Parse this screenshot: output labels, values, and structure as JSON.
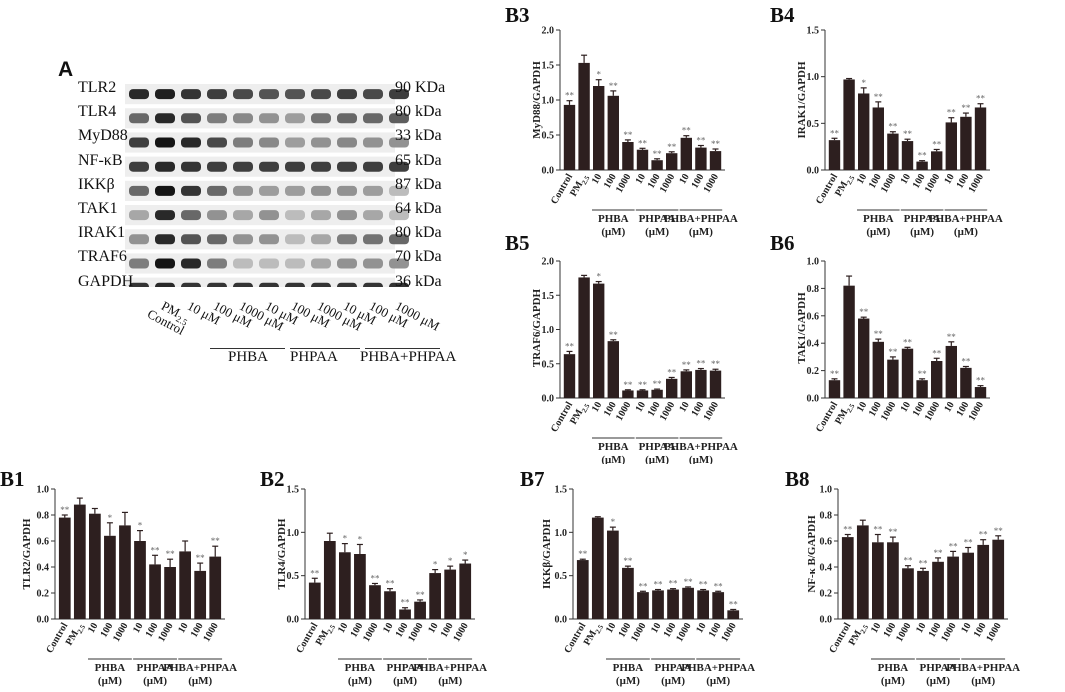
{
  "figure": {
    "panel_a_label": "A",
    "blot": {
      "proteins": [
        "TLR2",
        "TLR4",
        "MyD88",
        "NF-κB",
        "IKKβ",
        "TAK1",
        "IRAK1",
        "TRAF6",
        "GAPDH"
      ],
      "sizes": [
        "90 KDa",
        "80 kDa",
        "33 kDa",
        "65 kDa",
        "87 kDa",
        "64 kDa",
        "80 kDa",
        "70 kDa",
        "36 kDa"
      ],
      "lanes": [
        "Control",
        "PM",
        "10 μM",
        "100 μM",
        "1000 μM",
        "10 μM",
        "100 μM",
        "1000 μM",
        "10 μM",
        "100 μM",
        "1000 μM"
      ],
      "pm_subscript": "2.5",
      "groups": [
        "PHBA",
        "PHPAA",
        "PHBA+PHPAA"
      ]
    }
  },
  "chart_data": [
    {
      "id": "B3",
      "type": "bar",
      "title": "B3",
      "ylabel": "MyD88/GAPDH",
      "ylim": [
        0,
        2.0
      ],
      "yticks": [
        "0.0",
        "0.5",
        "1.0",
        "1.5",
        "2.0"
      ],
      "categories": [
        "Control",
        "PM",
        "10",
        "100",
        "1000",
        "10",
        "100",
        "1000",
        "10",
        "100",
        "1000"
      ],
      "values": [
        0.93,
        1.53,
        1.2,
        1.06,
        0.4,
        0.29,
        0.14,
        0.24,
        0.46,
        0.32,
        0.27
      ],
      "errors": [
        0.06,
        0.11,
        0.09,
        0.07,
        0.03,
        0.02,
        0.02,
        0.02,
        0.03,
        0.03,
        0.03
      ],
      "sig": [
        "**",
        "",
        "*",
        "**",
        "**",
        "**",
        "**",
        "**",
        "**",
        "**",
        "**"
      ],
      "groups": [
        {
          "name": "PHBA",
          "unit": "(μM)"
        },
        {
          "name": "PHPAA",
          "unit": "(μM)"
        },
        {
          "name": "PHBA+PHPAA",
          "unit": "(μM)"
        }
      ]
    },
    {
      "id": "B4",
      "type": "bar",
      "title": "B4",
      "ylabel": "IRAK1/GAPDH",
      "ylim": [
        0,
        1.5
      ],
      "yticks": [
        "0.0",
        "0.5",
        "1.0",
        "1.5"
      ],
      "categories": [
        "Control",
        "PM",
        "10",
        "100",
        "1000",
        "10",
        "100",
        "1000",
        "10",
        "100",
        "1000"
      ],
      "values": [
        0.32,
        0.97,
        0.82,
        0.67,
        0.39,
        0.31,
        0.09,
        0.2,
        0.51,
        0.57,
        0.67
      ],
      "errors": [
        0.02,
        0.01,
        0.06,
        0.06,
        0.02,
        0.02,
        0.01,
        0.02,
        0.05,
        0.04,
        0.04
      ],
      "sig": [
        "**",
        "",
        "*",
        "**",
        "**",
        "**",
        "**",
        "**",
        "**",
        "**",
        "**"
      ],
      "groups": [
        {
          "name": "PHBA",
          "unit": "(μM)"
        },
        {
          "name": "PHPAA",
          "unit": "(μM)"
        },
        {
          "name": "PHBA+PHPAA",
          "unit": "(μM)"
        }
      ]
    },
    {
      "id": "B5",
      "type": "bar",
      "title": "B5",
      "ylabel": "TRAF6/GAPDH",
      "ylim": [
        0,
        2.0
      ],
      "yticks": [
        "0.0",
        "0.5",
        "1.0",
        "1.5",
        "2.0"
      ],
      "categories": [
        "Control",
        "PM",
        "10",
        "100",
        "1000",
        "10",
        "100",
        "1000",
        "10",
        "100",
        "1000"
      ],
      "values": [
        0.64,
        1.76,
        1.67,
        0.83,
        0.11,
        0.11,
        0.12,
        0.28,
        0.39,
        0.41,
        0.4
      ],
      "errors": [
        0.04,
        0.03,
        0.03,
        0.02,
        0.01,
        0.01,
        0.01,
        0.02,
        0.02,
        0.02,
        0.02
      ],
      "sig": [
        "**",
        "",
        "*",
        "**",
        "**",
        "**",
        "**",
        "**",
        "**",
        "**",
        "**"
      ],
      "groups": [
        {
          "name": "PHBA",
          "unit": "(μM)"
        },
        {
          "name": "PHPAA",
          "unit": "(μM)"
        },
        {
          "name": "PHBA+PHPAA",
          "unit": "(μM)"
        }
      ]
    },
    {
      "id": "B6",
      "type": "bar",
      "title": "B6",
      "ylabel": "TAK1/GAPDH",
      "ylim": [
        0,
        1.0
      ],
      "yticks": [
        "0.0",
        "0.2",
        "0.4",
        "0.6",
        "0.8",
        "1.0"
      ],
      "categories": [
        "Control",
        "PM",
        "10",
        "100",
        "1000",
        "10",
        "100",
        "1000",
        "10",
        "100",
        "1000"
      ],
      "values": [
        0.13,
        0.82,
        0.58,
        0.41,
        0.28,
        0.36,
        0.13,
        0.27,
        0.38,
        0.22,
        0.08
      ],
      "errors": [
        0.01,
        0.07,
        0.01,
        0.02,
        0.02,
        0.01,
        0.01,
        0.02,
        0.03,
        0.01,
        0.01
      ],
      "sig": [
        "**",
        "",
        "**",
        "**",
        "**",
        "**",
        "**",
        "**",
        "**",
        "**",
        "**"
      ],
      "groups": []
    },
    {
      "id": "B1",
      "type": "bar",
      "title": "B1",
      "ylabel": "TLR2/GAPDH",
      "ylim": [
        0,
        1.0
      ],
      "yticks": [
        "0.0",
        "0.2",
        "0.4",
        "0.6",
        "0.8",
        "1.0"
      ],
      "categories": [
        "Control",
        "PM",
        "10",
        "100",
        "1000",
        "10",
        "100",
        "1000",
        "10",
        "100",
        "1000"
      ],
      "values": [
        0.78,
        0.88,
        0.81,
        0.64,
        0.72,
        0.6,
        0.42,
        0.4,
        0.52,
        0.37,
        0.48
      ],
      "errors": [
        0.02,
        0.05,
        0.04,
        0.1,
        0.1,
        0.08,
        0.07,
        0.06,
        0.08,
        0.06,
        0.08
      ],
      "sig": [
        "**",
        "",
        "",
        "*",
        "",
        "*",
        "**",
        "**",
        "",
        "**",
        "**"
      ],
      "groups": [
        {
          "name": "PHBA",
          "unit": "(μM)"
        },
        {
          "name": "PHPAA",
          "unit": "(μM)"
        },
        {
          "name": "PHBA+PHPAA",
          "unit": "(μM)"
        }
      ]
    },
    {
      "id": "B2",
      "type": "bar",
      "title": "B2",
      "ylabel": "TLR4/GAPDH",
      "ylim": [
        0,
        1.5
      ],
      "yticks": [
        "0.0",
        "0.5",
        "1.0",
        "1.5"
      ],
      "categories": [
        "Control",
        "PM",
        "10",
        "100",
        "1000",
        "10",
        "100",
        "1000",
        "10",
        "100",
        "1000"
      ],
      "values": [
        0.42,
        0.9,
        0.77,
        0.75,
        0.39,
        0.32,
        0.11,
        0.2,
        0.53,
        0.57,
        0.64
      ],
      "errors": [
        0.05,
        0.09,
        0.1,
        0.11,
        0.02,
        0.03,
        0.02,
        0.02,
        0.04,
        0.04,
        0.04
      ],
      "sig": [
        "**",
        "",
        "*",
        "*",
        "**",
        "**",
        "**",
        "**",
        "*",
        "*",
        "*"
      ],
      "groups": [
        {
          "name": "PHBA",
          "unit": "(μM)"
        },
        {
          "name": "PHPAA",
          "unit": "(μM)"
        },
        {
          "name": "PHBA+PHPAA",
          "unit": "(μM)"
        }
      ]
    },
    {
      "id": "B7",
      "type": "bar",
      "title": "B7",
      "ylabel": "IKKβ/GAPDH",
      "ylim": [
        0,
        1.5
      ],
      "yticks": [
        "0.0",
        "0.5",
        "1.0",
        "1.5"
      ],
      "categories": [
        "Control",
        "PM",
        "10",
        "100",
        "1000",
        "10",
        "100",
        "1000",
        "10",
        "100",
        "1000"
      ],
      "values": [
        0.68,
        1.17,
        1.02,
        0.59,
        0.31,
        0.33,
        0.34,
        0.36,
        0.33,
        0.31,
        0.1
      ],
      "errors": [
        0.01,
        0.01,
        0.04,
        0.02,
        0.01,
        0.01,
        0.01,
        0.01,
        0.01,
        0.01,
        0.01
      ],
      "sig": [
        "**",
        "",
        "*",
        "**",
        "**",
        "**",
        "**",
        "**",
        "**",
        "**",
        "**"
      ],
      "groups": [
        {
          "name": "PHBA",
          "unit": "(μM)"
        },
        {
          "name": "PHPAA",
          "unit": "(μM)"
        },
        {
          "name": "PHBA+PHPAA",
          "unit": "(μM)"
        }
      ]
    },
    {
      "id": "B8",
      "type": "bar",
      "title": "B8",
      "ylabel": "NF-κ B/GAPDH",
      "ylim": [
        0,
        1.0
      ],
      "yticks": [
        "0.0",
        "0.2",
        "0.4",
        "0.6",
        "0.8",
        "1.0"
      ],
      "categories": [
        "Control",
        "PM",
        "10",
        "100",
        "1000",
        "10",
        "100",
        "1000",
        "10",
        "100",
        "1000"
      ],
      "values": [
        0.63,
        0.72,
        0.59,
        0.59,
        0.39,
        0.37,
        0.44,
        0.48,
        0.51,
        0.57,
        0.61
      ],
      "errors": [
        0.02,
        0.04,
        0.06,
        0.04,
        0.02,
        0.02,
        0.03,
        0.04,
        0.04,
        0.04,
        0.03
      ],
      "sig": [
        "**",
        "",
        "**",
        "**",
        "**",
        "**",
        "**",
        "**",
        "**",
        "**",
        "**"
      ],
      "groups": [
        {
          "name": "PHBA",
          "unit": "(μM)"
        },
        {
          "name": "PHPAA",
          "unit": "(μM)"
        },
        {
          "name": "PHBA+PHPAA",
          "unit": "(μM)"
        }
      ]
    }
  ],
  "style": {
    "bar_color": "#2d1f1f",
    "axis_color": "#333333",
    "sig_color": "#666666",
    "band_color": "#1a1a1a"
  }
}
